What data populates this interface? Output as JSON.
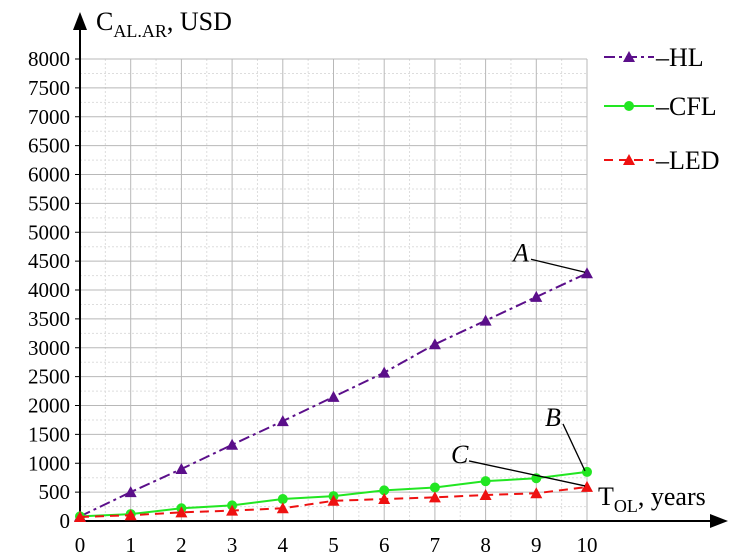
{
  "chart_data": {
    "type": "line",
    "x": [
      0,
      1,
      2,
      3,
      4,
      5,
      6,
      7,
      8,
      9,
      10
    ],
    "xlim": [
      0,
      10
    ],
    "ylim": [
      0,
      8000
    ],
    "xticks": [
      "0",
      "1",
      "2",
      "3",
      "4",
      "5",
      "6",
      "7",
      "8",
      "9",
      "10"
    ],
    "yticks": [
      "0",
      "500",
      "1000",
      "1500",
      "2000",
      "2500",
      "3000",
      "3500",
      "4000",
      "4500",
      "5000",
      "5500",
      "6000",
      "6500",
      "7000",
      "7500",
      "8000"
    ],
    "ylabel": {
      "main": "C",
      "sub": "AL.AR",
      "rest": ", USD"
    },
    "xlabel": {
      "main": "T",
      "sub": "OL",
      "rest": ", years"
    },
    "grid": true,
    "legend_position": "top-right",
    "series": [
      {
        "name": "HL",
        "legend_label": "–HL",
        "color": "#5b0f8a",
        "dash": "dashdot",
        "marker": "triangle",
        "values": [
          80,
          500,
          900,
          1320,
          1730,
          2150,
          2570,
          3060,
          3470,
          3880,
          4290
        ]
      },
      {
        "name": "CFL",
        "legend_label": "–CFL",
        "color": "#22e622",
        "dash": "solid",
        "marker": "circle",
        "values": [
          80,
          120,
          220,
          270,
          380,
          430,
          530,
          580,
          690,
          740,
          850
        ]
      },
      {
        "name": "LED",
        "legend_label": "–LED",
        "color": "#ee1111",
        "dash": "dashed",
        "marker": "triangle",
        "values": [
          70,
          100,
          150,
          180,
          220,
          350,
          380,
          410,
          450,
          480,
          590
        ]
      }
    ],
    "annotations": [
      {
        "text": "A",
        "x": 10,
        "y": 4290
      },
      {
        "text": "B",
        "x": 10,
        "y": 850
      },
      {
        "text": "C",
        "x": 10,
        "y": 590
      }
    ]
  }
}
